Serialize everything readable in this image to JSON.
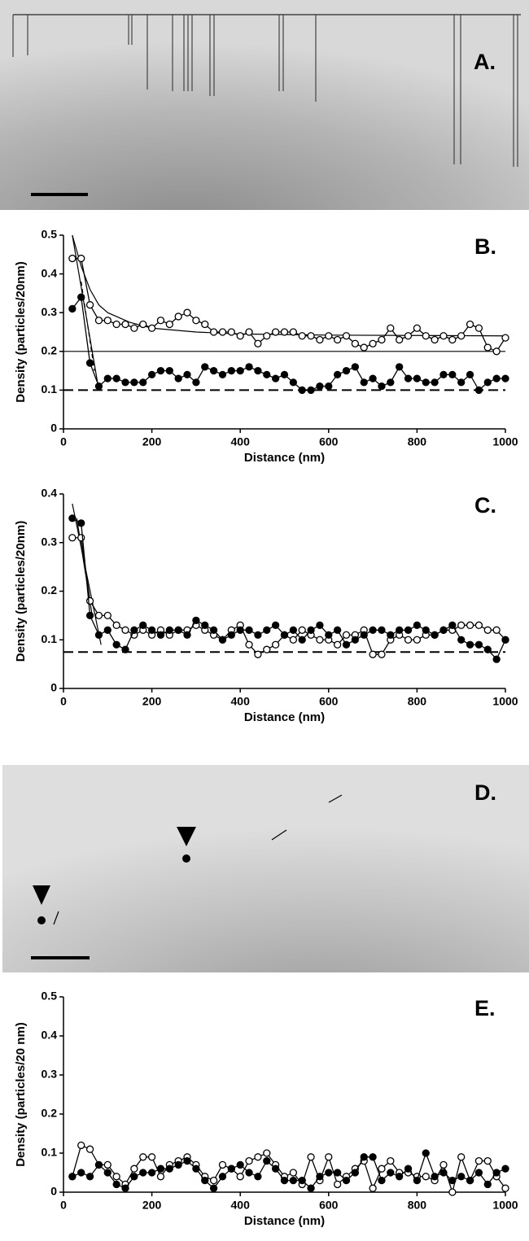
{
  "images": [
    {
      "label": "A."
    },
    {
      "label": "D."
    }
  ],
  "chart_data": [
    {
      "type": "line",
      "panel": "B.",
      "ylabel": "Density (particles/20nm)",
      "xlabel": "Distance (nm)",
      "xlim": [
        0,
        1000
      ],
      "xticks": [
        0,
        200,
        400,
        600,
        800,
        1000
      ],
      "ylim": [
        0,
        0.5
      ],
      "yticks": [
        0,
        0.1,
        0.2,
        0.3,
        0.4,
        0.5
      ],
      "x": [
        20,
        40,
        60,
        80,
        100,
        120,
        140,
        160,
        180,
        200,
        220,
        240,
        260,
        280,
        300,
        320,
        340,
        360,
        380,
        400,
        420,
        440,
        460,
        480,
        500,
        520,
        540,
        560,
        580,
        600,
        620,
        640,
        660,
        680,
        700,
        720,
        740,
        760,
        780,
        800,
        820,
        840,
        860,
        880,
        900,
        920,
        940,
        960,
        980,
        1000
      ],
      "series": [
        {
          "color": "#000000",
          "marker": "open",
          "values": [
            0.44,
            0.44,
            0.32,
            0.28,
            0.28,
            0.27,
            0.27,
            0.26,
            0.27,
            0.26,
            0.28,
            0.27,
            0.29,
            0.3,
            0.28,
            0.27,
            0.25,
            0.25,
            0.25,
            0.24,
            0.25,
            0.22,
            0.24,
            0.25,
            0.25,
            0.25,
            0.24,
            0.24,
            0.23,
            0.24,
            0.23,
            0.24,
            0.22,
            0.21,
            0.22,
            0.23,
            0.26,
            0.23,
            0.24,
            0.26,
            0.24,
            0.23,
            0.24,
            0.23,
            0.24,
            0.27,
            0.26,
            0.21,
            0.2,
            0.235
          ]
        },
        {
          "color": "#000000",
          "marker": "filled",
          "values": [
            0.31,
            0.34,
            0.17,
            0.11,
            0.13,
            0.13,
            0.12,
            0.12,
            0.12,
            0.14,
            0.15,
            0.15,
            0.13,
            0.14,
            0.12,
            0.16,
            0.15,
            0.14,
            0.15,
            0.15,
            0.16,
            0.15,
            0.14,
            0.13,
            0.14,
            0.12,
            0.1,
            0.1,
            0.11,
            0.11,
            0.14,
            0.15,
            0.16,
            0.12,
            0.13,
            0.11,
            0.12,
            0.16,
            0.13,
            0.13,
            0.12,
            0.12,
            0.14,
            0.14,
            0.12,
            0.14,
            0.1,
            0.12,
            0.13,
            0.13
          ]
        }
      ],
      "fits": [
        {
          "style": "solid",
          "x": [
            20,
            40,
            60,
            80,
            100,
            150,
            200,
            300,
            400,
            600,
            800,
            1000
          ],
          "values": [
            0.5,
            0.42,
            0.36,
            0.32,
            0.3,
            0.275,
            0.26,
            0.25,
            0.245,
            0.242,
            0.241,
            0.24
          ]
        },
        {
          "style": "solid",
          "x": [
            20,
            80
          ],
          "values": [
            0.5,
            0.1
          ]
        },
        {
          "style": "dashed",
          "x": [
            40,
            70
          ],
          "values": [
            0.38,
            0.15
          ]
        }
      ],
      "hlines": [
        {
          "value": 0.2,
          "style": "solid"
        },
        {
          "value": 0.1,
          "style": "dashed"
        }
      ]
    },
    {
      "type": "line",
      "panel": "C.",
      "ylabel": "Density (particles/20nm)",
      "xlabel": "Distance (nm)",
      "xlim": [
        0,
        1000
      ],
      "xticks": [
        0,
        200,
        400,
        600,
        800,
        1000
      ],
      "ylim": [
        0,
        0.4
      ],
      "yticks": [
        0,
        0.1,
        0.2,
        0.3,
        0.4
      ],
      "x": [
        20,
        40,
        60,
        80,
        100,
        120,
        140,
        160,
        180,
        200,
        220,
        240,
        260,
        280,
        300,
        320,
        340,
        360,
        380,
        400,
        420,
        440,
        460,
        480,
        500,
        520,
        540,
        560,
        580,
        600,
        620,
        640,
        660,
        680,
        700,
        720,
        740,
        760,
        780,
        800,
        820,
        840,
        860,
        880,
        900,
        920,
        940,
        960,
        980,
        1000
      ],
      "series": [
        {
          "color": "#000000",
          "marker": "open",
          "values": [
            0.31,
            0.31,
            0.18,
            0.15,
            0.15,
            0.13,
            0.12,
            0.11,
            0.12,
            0.11,
            0.12,
            0.11,
            0.12,
            0.12,
            0.13,
            0.12,
            0.11,
            0.1,
            0.12,
            0.13,
            0.09,
            0.07,
            0.08,
            0.09,
            0.11,
            0.1,
            0.12,
            0.11,
            0.1,
            0.1,
            0.09,
            0.11,
            0.11,
            0.12,
            0.07,
            0.07,
            0.1,
            0.11,
            0.1,
            0.1,
            0.11,
            0.11,
            0.12,
            0.12,
            0.13,
            0.13,
            0.13,
            0.12,
            0.12,
            0.1
          ]
        },
        {
          "color": "#000000",
          "marker": "filled",
          "values": [
            0.35,
            0.34,
            0.15,
            0.11,
            0.12,
            0.09,
            0.08,
            0.12,
            0.13,
            0.12,
            0.11,
            0.12,
            0.12,
            0.11,
            0.14,
            0.13,
            0.12,
            0.1,
            0.11,
            0.12,
            0.12,
            0.11,
            0.12,
            0.13,
            0.11,
            0.12,
            0.1,
            0.12,
            0.13,
            0.11,
            0.12,
            0.09,
            0.1,
            0.11,
            0.12,
            0.12,
            0.11,
            0.12,
            0.12,
            0.13,
            0.12,
            0.11,
            0.12,
            0.13,
            0.1,
            0.09,
            0.09,
            0.08,
            0.06,
            0.1
          ]
        }
      ],
      "fits": [
        {
          "style": "solid",
          "x": [
            20,
            85
          ],
          "values": [
            0.38,
            0.09
          ]
        },
        {
          "style": "solid",
          "x": [
            30,
            65
          ],
          "values": [
            0.35,
            0.15
          ]
        }
      ],
      "hlines": [
        {
          "value": 0.075,
          "style": "dashed"
        }
      ]
    },
    {
      "type": "line",
      "panel": "E.",
      "ylabel": "Density (particles/20 nm)",
      "xlabel": "Distance (nm)",
      "xlim": [
        0,
        1000
      ],
      "xticks": [
        0,
        200,
        400,
        600,
        800,
        1000
      ],
      "ylim": [
        0,
        0.5
      ],
      "yticks": [
        0,
        0.1,
        0.2,
        0.3,
        0.4,
        0.5
      ],
      "x": [
        20,
        40,
        60,
        80,
        100,
        120,
        140,
        160,
        180,
        200,
        220,
        240,
        260,
        280,
        300,
        320,
        340,
        360,
        380,
        400,
        420,
        440,
        460,
        480,
        500,
        520,
        540,
        560,
        580,
        600,
        620,
        640,
        660,
        680,
        700,
        720,
        740,
        760,
        780,
        800,
        820,
        840,
        860,
        880,
        900,
        920,
        940,
        960,
        980,
        1000
      ],
      "series": [
        {
          "color": "#000000",
          "marker": "open",
          "values": [
            0.04,
            0.12,
            0.11,
            0.07,
            0.07,
            0.04,
            0.02,
            0.06,
            0.09,
            0.09,
            0.04,
            0.07,
            0.08,
            0.09,
            0.07,
            0.04,
            0.03,
            0.07,
            0.06,
            0.04,
            0.08,
            0.09,
            0.1,
            0.07,
            0.04,
            0.05,
            0.02,
            0.09,
            0.03,
            0.09,
            0.02,
            0.04,
            0.06,
            0.08,
            0.01,
            0.06,
            0.08,
            0.05,
            0.05,
            0.04,
            0.04,
            0.03,
            0.07,
            0.0,
            0.09,
            0.03,
            0.08,
            0.08,
            0.04,
            0.01
          ]
        },
        {
          "color": "#000000",
          "marker": "filled",
          "values": [
            0.04,
            0.05,
            0.04,
            0.07,
            0.05,
            0.02,
            0.01,
            0.04,
            0.05,
            0.05,
            0.06,
            0.06,
            0.07,
            0.08,
            0.06,
            0.03,
            0.01,
            0.04,
            0.06,
            0.07,
            0.05,
            0.04,
            0.08,
            0.06,
            0.03,
            0.03,
            0.03,
            0.01,
            0.04,
            0.05,
            0.05,
            0.03,
            0.05,
            0.09,
            0.09,
            0.03,
            0.05,
            0.04,
            0.06,
            0.03,
            0.1,
            0.04,
            0.05,
            0.03,
            0.04,
            0.03,
            0.05,
            0.02,
            0.05,
            0.06
          ]
        }
      ],
      "fits": [],
      "hlines": []
    }
  ]
}
